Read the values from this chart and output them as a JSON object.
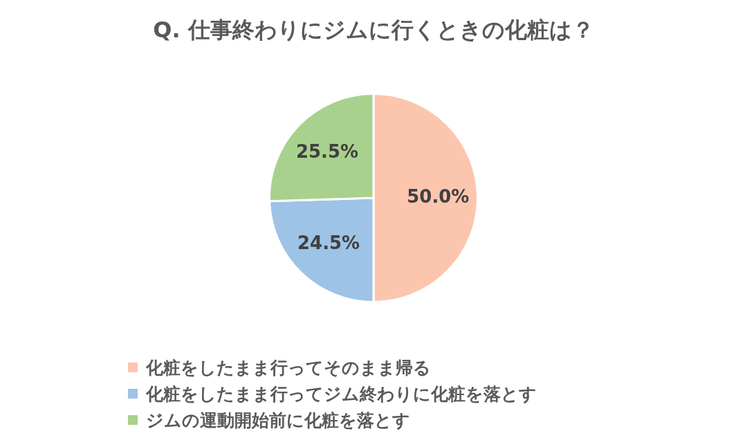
{
  "chart_data": {
    "type": "pie",
    "title": "Q. 仕事終わりにジムに行くときの化粧は？",
    "categories": [
      "化粧をしたまま行ってそのまま帰る",
      "化粧をしたまま行ってジム終わりに化粧を落とす",
      "ジムの運動開始前に化粧を落とす"
    ],
    "values": [
      50.0,
      24.5,
      25.5
    ],
    "value_labels": [
      "50.0%",
      "24.5%",
      "25.5%"
    ],
    "colors": [
      "#fcc5ae",
      "#9dc3e6",
      "#a9d18e"
    ],
    "legend": "bottom"
  }
}
